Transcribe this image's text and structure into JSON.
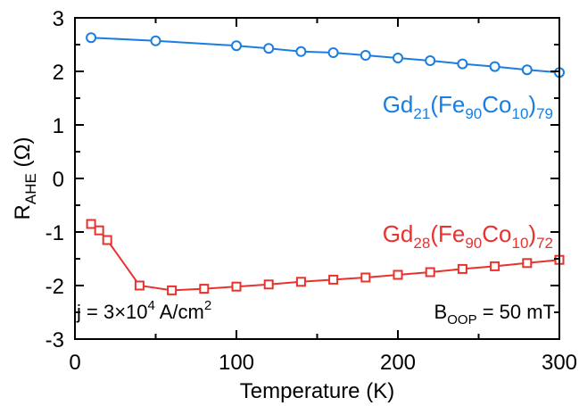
{
  "chart_data": {
    "type": "line",
    "xlabel": "Temperature (K)",
    "ylabel": {
      "main": "R",
      "sub": "AHE",
      "unit": " (Ω)"
    },
    "xlim": [
      0,
      300
    ],
    "ylim": [
      -3,
      3
    ],
    "xticks": [
      0,
      100,
      200,
      300
    ],
    "yticks": [
      3,
      2,
      1,
      0,
      -1,
      -2,
      -3
    ],
    "grid": false,
    "series": [
      {
        "label": {
          "p1": "Gd",
          "s1": "21",
          "p2": "(Fe",
          "s2": "90",
          "p3": "Co",
          "s3": "10",
          "p4": ")",
          "s4": "79"
        },
        "color": "#1a7ee0",
        "marker": "circle",
        "x": [
          10,
          50,
          100,
          120,
          140,
          160,
          180,
          200,
          220,
          240,
          260,
          280,
          300
        ],
        "y": [
          2.63,
          2.57,
          2.48,
          2.43,
          2.37,
          2.35,
          2.3,
          2.25,
          2.2,
          2.14,
          2.09,
          2.03,
          1.98
        ]
      },
      {
        "label": {
          "p1": "Gd",
          "s1": "28",
          "p2": "(Fe",
          "s2": "90",
          "p3": "Co",
          "s3": "10",
          "p4": ")",
          "s4": "72"
        },
        "color": "#e8322e",
        "marker": "square",
        "x": [
          10,
          15,
          20,
          40,
          60,
          80,
          100,
          120,
          140,
          160,
          180,
          200,
          220,
          240,
          260,
          280,
          300
        ],
        "y": [
          -0.85,
          -0.97,
          -1.15,
          -2.0,
          -2.09,
          -2.06,
          -2.02,
          -1.98,
          -1.93,
          -1.89,
          -1.85,
          -1.8,
          -1.75,
          -1.69,
          -1.64,
          -1.58,
          -1.52
        ]
      }
    ],
    "annotations": {
      "current": {
        "pre": "j = 3×10",
        "exp": "4",
        "mid": " A/cm",
        "exp2": "2"
      },
      "field": {
        "main": "B",
        "sub": "OOP",
        "rest": " = 50 mT"
      }
    }
  }
}
